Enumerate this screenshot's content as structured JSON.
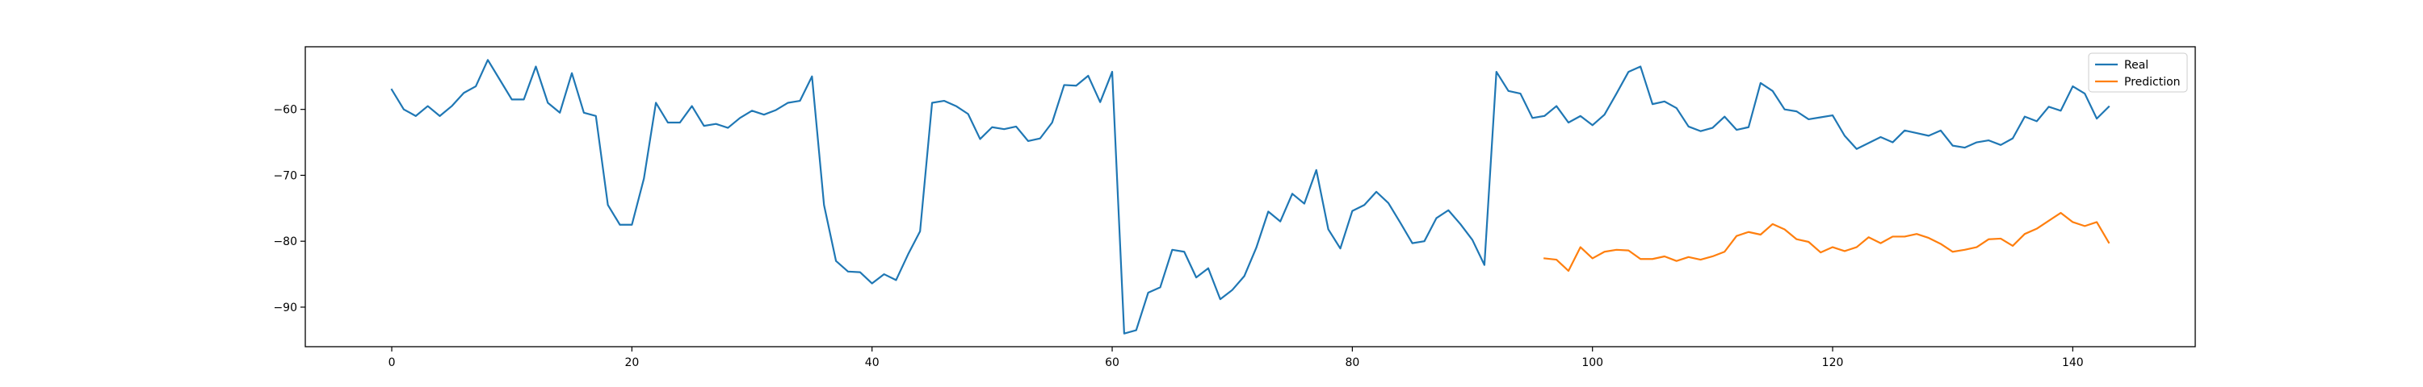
{
  "chart_data": {
    "type": "line",
    "title": "",
    "xlabel": "",
    "ylabel": "",
    "xlim": [
      -7.2,
      150.2
    ],
    "ylim": [
      -96,
      -50.5
    ],
    "xticks": [
      0,
      20,
      40,
      60,
      80,
      100,
      120,
      140
    ],
    "yticks": [
      -60,
      -70,
      -80,
      -90
    ],
    "grid": false,
    "legend": {
      "location": "upper right"
    },
    "series": [
      {
        "name": "Real",
        "color": "#1f77b4",
        "x_start": 0,
        "values": [
          -57,
          -60,
          -61,
          -59.5,
          -61,
          -59.5,
          -57.5,
          -56.5,
          -52.5,
          -55.5,
          -58.5,
          -58.5,
          -53.5,
          -59,
          -60.5,
          -54.5,
          -60.5,
          -61,
          -74.5,
          -77.5,
          -77.5,
          -70.5,
          -59,
          -62,
          -62,
          -59.5,
          -62.5,
          -62.2,
          -62.8,
          -61.3,
          -60.2,
          -60.8,
          -60.1,
          -59,
          -58.7,
          -55,
          -74.5,
          -83,
          -84.6,
          -84.7,
          -86.4,
          -85,
          -85.9,
          -82,
          -78.5,
          -59,
          -58.7,
          -59.5,
          -60.7,
          -64.5,
          -62.7,
          -63,
          -62.6,
          -64.8,
          -64.4,
          -62,
          -56.3,
          -56.4,
          -54.9,
          -58.9,
          -54.3,
          -94,
          -93.5,
          -87.8,
          -87,
          -81.3,
          -81.6,
          -85.5,
          -84.1,
          -88.8,
          -87.4,
          -85.3,
          -81,
          -75.5,
          -77,
          -72.8,
          -74.3,
          -69.2,
          -78.2,
          -81.1,
          -75.4,
          -74.5,
          -72.5,
          -74.2,
          -77.2,
          -80.3,
          -80,
          -76.5,
          -75.3,
          -77.4,
          -79.8,
          -83.6,
          -54.3,
          -57.2,
          -57.6,
          -61.3,
          -61,
          -59.5,
          -62,
          -61,
          -62.4,
          -60.8,
          -57.6,
          -54.3,
          -53.5,
          -59.2,
          -58.8,
          -59.8,
          -62.6,
          -63.3,
          -62.8,
          -61.1,
          -63.1,
          -62.7,
          -56,
          -57.2,
          -60,
          -60.3,
          -61.5,
          -61.2,
          -60.9,
          -64,
          -66,
          -65.1,
          -64.2,
          -65,
          -63.2,
          -63.6,
          -64,
          -63.2,
          -65.5,
          -65.8,
          -65,
          -64.7,
          -65.4,
          -64.4,
          -61.1,
          -61.8,
          -59.6,
          -60.2,
          -56.5,
          -57.6,
          -61.4,
          -59.6
        ]
      },
      {
        "name": "Prediction",
        "color": "#ff7f0e",
        "x_start": 96,
        "values": [
          -82.6,
          -82.8,
          -84.5,
          -80.9,
          -82.6,
          -81.6,
          -81.3,
          -81.4,
          -82.7,
          -82.7,
          -82.3,
          -83,
          -82.4,
          -82.8,
          -82.3,
          -81.6,
          -79.2,
          -78.6,
          -79,
          -77.4,
          -78.2,
          -79.7,
          -80.1,
          -81.7,
          -80.9,
          -81.5,
          -80.9,
          -79.4,
          -80.3,
          -79.3,
          -79.3,
          -78.9,
          -79.5,
          -80.4,
          -81.6,
          -81.3,
          -80.9,
          -79.7,
          -79.6,
          -80.7,
          -78.9,
          -78.1,
          -76.9,
          -75.7,
          -77.1,
          -77.7,
          -77.1,
          -80.2
        ]
      }
    ]
  }
}
